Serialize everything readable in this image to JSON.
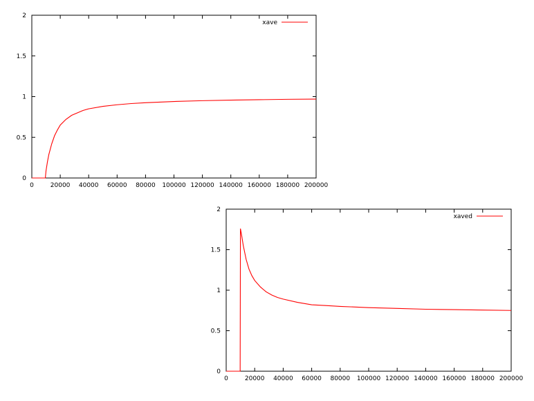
{
  "chart_data": [
    {
      "type": "line",
      "xlim": [
        0,
        200000
      ],
      "ylim": [
        0,
        2
      ],
      "x_ticks": [
        "0",
        "20000",
        "40000",
        "60000",
        "80000",
        "100000",
        "120000",
        "140000",
        "160000",
        "180000",
        "200000"
      ],
      "y_ticks": [
        "0",
        "0.5",
        "1",
        "1.5",
        "2"
      ],
      "legend_position": "top-right",
      "series": [
        {
          "name": "xave",
          "color": "#ff0000",
          "x": [
            0,
            9000,
            9500,
            10000,
            11000,
            12000,
            14000,
            16000,
            18000,
            20000,
            24000,
            28000,
            32000,
            36000,
            40000,
            50000,
            60000,
            70000,
            80000,
            100000,
            120000,
            140000,
            160000,
            180000,
            200000
          ],
          "y": [
            0,
            0,
            0,
            0.09,
            0.2,
            0.29,
            0.42,
            0.52,
            0.59,
            0.65,
            0.72,
            0.77,
            0.8,
            0.83,
            0.85,
            0.88,
            0.9,
            0.915,
            0.925,
            0.94,
            0.95,
            0.957,
            0.962,
            0.967,
            0.97
          ]
        }
      ]
    },
    {
      "type": "line",
      "xlim": [
        0,
        200000
      ],
      "ylim": [
        0,
        2
      ],
      "x_ticks": [
        "0",
        "20000",
        "40000",
        "60000",
        "80000",
        "100000",
        "120000",
        "140000",
        "160000",
        "180000",
        "200000"
      ],
      "y_ticks": [
        "0",
        "0.5",
        "1",
        "1.5",
        "2"
      ],
      "legend_position": "top-right",
      "series": [
        {
          "name": "xaved",
          "color": "#ff0000",
          "x": [
            0,
            9800,
            9801,
            10000,
            11000,
            12000,
            14000,
            16000,
            18000,
            20000,
            24000,
            28000,
            32000,
            36000,
            40000,
            50000,
            60000,
            70000,
            80000,
            100000,
            120000,
            140000,
            160000,
            180000,
            200000
          ],
          "y": [
            0,
            0,
            0.01,
            1.76,
            1.66,
            1.55,
            1.38,
            1.26,
            1.18,
            1.12,
            1.04,
            0.98,
            0.94,
            0.91,
            0.89,
            0.85,
            0.82,
            0.81,
            0.8,
            0.785,
            0.775,
            0.765,
            0.76,
            0.755,
            0.75
          ]
        }
      ]
    }
  ]
}
